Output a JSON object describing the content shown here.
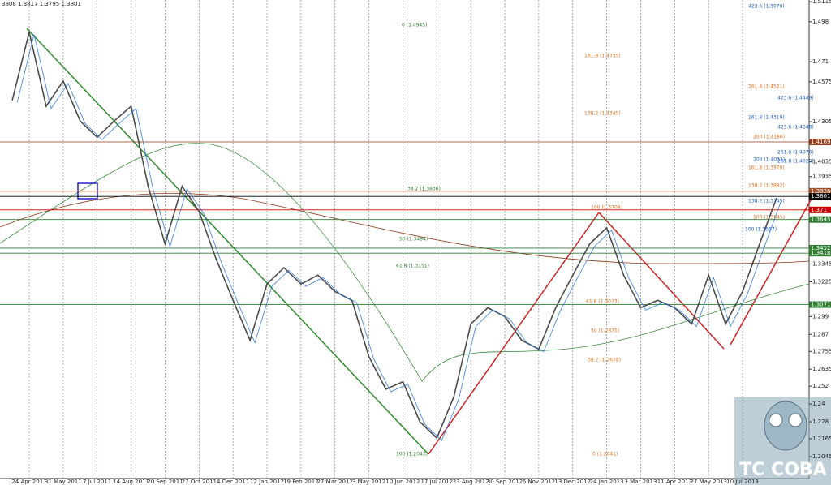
{
  "chart_data": {
    "type": "line",
    "title": "3808 1.3817 1.3795 1.3801",
    "categories": [
      null,
      "24 Apr 2011",
      null,
      "31 May 2011",
      null,
      "7 Jul 2011",
      null,
      "14 Aug 2011",
      null,
      "20 Sep 2011",
      null,
      "27 Oct 2011",
      null,
      "4 Dec 2011",
      null,
      "12 Jan 2012",
      null,
      "19 Feb 2012",
      null,
      "27 Mar 2012",
      null,
      "3 May 2012",
      null,
      "10 Jun 2012",
      null,
      "17 Jul 2012",
      null,
      "23 Aug 2012",
      null,
      "30 Sep 2012",
      null,
      "6 Nov 2012",
      null,
      "13 Dec 2012",
      null,
      "24 Jan 2013",
      null,
      "3 Mar 2013",
      null,
      "11 Apr 2013",
      null,
      "27 May 2013",
      null,
      "10 Jul 2013",
      null,
      null
    ],
    "values": [
      1.445,
      1.491,
      1.441,
      1.458,
      1.431,
      1.42,
      1.431,
      1.441,
      1.387,
      1.348,
      1.387,
      1.37,
      1.338,
      1.31,
      1.283,
      1.321,
      1.332,
      1.321,
      1.327,
      1.316,
      1.31,
      1.272,
      1.25,
      1.255,
      1.228,
      1.217,
      1.245,
      1.294,
      1.305,
      1.299,
      1.283,
      1.277,
      1.305,
      1.327,
      1.348,
      1.359,
      1.327,
      1.305,
      1.31,
      1.305,
      1.294,
      1.327,
      1.294,
      1.316,
      1.348,
      1.379
    ],
    "color": "#4a4a4a",
    "ylim": [
      1.1897,
      1.5127
    ],
    "yticks": [
      1.5115,
      1.498,
      1.471,
      1.4575,
      1.4305,
      1.4035,
      1.3935,
      1.3345,
      1.3225,
      1.299,
      1.287,
      1.2755,
      1.2635,
      1.252,
      1.24,
      1.228,
      1.2165,
      1.2045
    ],
    "grid": true,
    "price_tags": [
      {
        "value": 1.4169,
        "color": "#8b3a1a"
      },
      {
        "value": 1.3836,
        "color": "#a0522d"
      },
      {
        "value": 1.3801,
        "color": "#000000"
      },
      {
        "value": 1.371,
        "color": "#cc0000"
      },
      {
        "value": 1.3645,
        "color": "#2e7d32"
      },
      {
        "value": 1.3452,
        "color": "#2e7d32"
      },
      {
        "value": 1.3418,
        "color": "#2e7d32"
      },
      {
        "value": 1.3071,
        "color": "#2e7d32"
      }
    ],
    "annotations": [
      "0 (1.4945)",
      "161.8 (1.4735)",
      "261.8 (1.4521)",
      "138.2 (1.4345)",
      "200 (1.4186)",
      "161.8 (1.3979)",
      "138.2 (1.3892)",
      "38.2 (1.3836)",
      "100 (1.3709)",
      "100 (1.3645)",
      "50 (1.3494)",
      "61.8 (1.3151)",
      "61.8 (1.3073)",
      "50 (1.2875)",
      "38.2 (1.2678)",
      "100 (1.2043)",
      "0 (1.2041)",
      "423.6 (1.5070)",
      "423.6 (1.4449)",
      "261.8 (1.4319)",
      "423.6 (1.4248)",
      "261.8 (1.4076)",
      "200 (1.4032)",
      "261.8 (1.4020)",
      "138.2 (1.3745)",
      "100 (1.3567)"
    ],
    "brand": "TC COBA"
  }
}
